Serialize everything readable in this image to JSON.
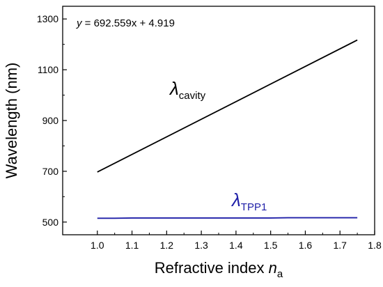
{
  "chart_data": {
    "type": "line",
    "xlabel": {
      "main": "Refractive index ",
      "var": "n",
      "sub": "a"
    },
    "ylabel": "Wavelength (nm)",
    "xlim": [
      0.9,
      1.8
    ],
    "ylim": [
      450,
      1350
    ],
    "xticks": [
      "1.0",
      "1.1",
      "1.2",
      "1.3",
      "1.4",
      "1.5",
      "1.6",
      "1.7",
      "1.8"
    ],
    "xtick_values": [
      1.0,
      1.1,
      1.2,
      1.3,
      1.4,
      1.5,
      1.6,
      1.7,
      1.8
    ],
    "yticks": [
      "500",
      "700",
      "900",
      "1100",
      "1300"
    ],
    "ytick_values": [
      500,
      700,
      900,
      1100,
      1300
    ],
    "grid": false,
    "annotation": {
      "var": "y",
      "text": " = 692.559x + 4.919"
    },
    "series": [
      {
        "label_symbol": "λ",
        "label_sub": "cavity",
        "color": "#000000",
        "x": [
          1.0,
          1.75
        ],
        "y": [
          697,
          1217
        ]
      },
      {
        "label_symbol": "λ",
        "label_sub": "TPP1",
        "color": "#1f1fa8",
        "x": [
          1.0,
          1.05,
          1.1,
          1.2,
          1.3,
          1.4,
          1.5,
          1.55,
          1.6,
          1.7,
          1.75
        ],
        "y": [
          515,
          515,
          516,
          516,
          516,
          516,
          516,
          517,
          517,
          517,
          517
        ]
      }
    ]
  }
}
